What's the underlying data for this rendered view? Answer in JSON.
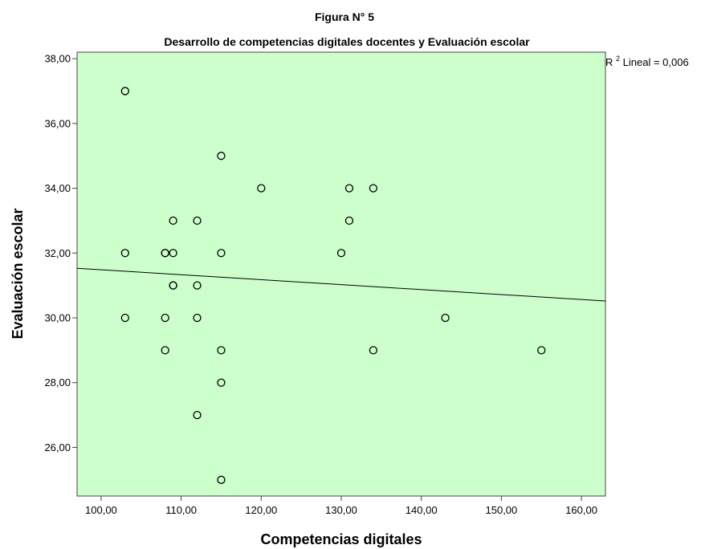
{
  "figure_label": "Figura N° 5",
  "chart_data": {
    "type": "scatter",
    "title": "Desarrollo de competencias digitales docentes y Evaluación escolar",
    "xlabel": "Competencias digitales",
    "ylabel": "Evaluación escolar",
    "xlim": [
      97,
      163
    ],
    "ylim": [
      24.5,
      38.2
    ],
    "x_ticks": [
      100,
      110,
      120,
      130,
      140,
      150,
      160
    ],
    "x_tick_labels": [
      "100,00",
      "110,00",
      "120,00",
      "130,00",
      "140,00",
      "150,00",
      "160,00"
    ],
    "y_ticks": [
      26,
      28,
      30,
      32,
      34,
      36,
      38
    ],
    "y_tick_labels": [
      "26,00",
      "28,00",
      "30,00",
      "32,00",
      "34,00",
      "36,00",
      "38,00"
    ],
    "grid": false,
    "plot_background": "#ccffcc",
    "points": [
      {
        "x": 103,
        "y": 37
      },
      {
        "x": 103,
        "y": 32
      },
      {
        "x": 103,
        "y": 30
      },
      {
        "x": 108,
        "y": 32
      },
      {
        "x": 108,
        "y": 32
      },
      {
        "x": 108,
        "y": 30
      },
      {
        "x": 108,
        "y": 29
      },
      {
        "x": 109,
        "y": 33
      },
      {
        "x": 109,
        "y": 32
      },
      {
        "x": 109,
        "y": 31
      },
      {
        "x": 109,
        "y": 31
      },
      {
        "x": 112,
        "y": 33
      },
      {
        "x": 112,
        "y": 31
      },
      {
        "x": 112,
        "y": 30
      },
      {
        "x": 112,
        "y": 27
      },
      {
        "x": 115,
        "y": 35
      },
      {
        "x": 115,
        "y": 32
      },
      {
        "x": 115,
        "y": 29
      },
      {
        "x": 115,
        "y": 28
      },
      {
        "x": 115,
        "y": 25
      },
      {
        "x": 120,
        "y": 34
      },
      {
        "x": 130,
        "y": 32
      },
      {
        "x": 131,
        "y": 34
      },
      {
        "x": 131,
        "y": 33
      },
      {
        "x": 134,
        "y": 34
      },
      {
        "x": 134,
        "y": 29
      },
      {
        "x": 143,
        "y": 30
      },
      {
        "x": 155,
        "y": 29
      }
    ],
    "fit_line": {
      "type": "linear",
      "x": [
        97,
        163
      ],
      "y": [
        31.53,
        30.52
      ]
    },
    "annotation": {
      "prefix": "R",
      "superscript": "2",
      "text": " Lineal = 0,006"
    }
  }
}
